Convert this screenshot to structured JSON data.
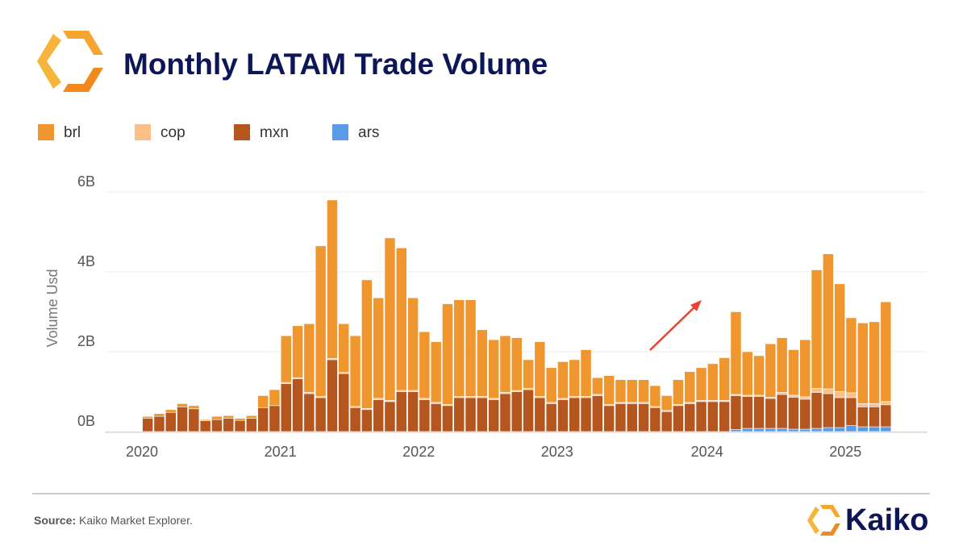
{
  "chart_data": {
    "type": "stacked_bar",
    "title": "Monthly LATAM Trade Volume",
    "y_label": "Volume Usd",
    "categories": [
      "2020",
      null,
      null,
      null,
      null,
      null,
      null,
      null,
      null,
      null,
      null,
      null,
      "2021",
      null,
      null,
      null,
      null,
      null,
      null,
      null,
      null,
      null,
      null,
      null,
      "2022",
      null,
      null,
      null,
      null,
      null,
      null,
      null,
      null,
      null,
      null,
      null,
      "2023",
      null,
      null,
      null,
      null,
      null,
      null,
      null,
      null,
      null,
      null,
      null,
      null,
      "2024",
      null,
      null,
      null,
      null,
      null,
      null,
      null,
      null,
      null,
      null,
      null,
      "2025",
      null,
      null,
      null
    ],
    "series": [
      {
        "name": "ars",
        "color": "#5b9ae8",
        "values": [
          0,
          0,
          0,
          0,
          0,
          0,
          0,
          0,
          0,
          0,
          0,
          0,
          0,
          0,
          0,
          0,
          0,
          0,
          0,
          0,
          0,
          0,
          0,
          0,
          0,
          0,
          0,
          0,
          0,
          0,
          0,
          0,
          0,
          0,
          0,
          0,
          0,
          0,
          0,
          0,
          0,
          0,
          0,
          0,
          0,
          0,
          0,
          0,
          0,
          0,
          0,
          0.05,
          0.08,
          0.08,
          0.08,
          0.08,
          0.06,
          0.06,
          0.08,
          0.1,
          0.1,
          0.15,
          0.12,
          0.12,
          0.12
        ]
      },
      {
        "name": "mxn",
        "color": "#b5561f",
        "values": [
          0.33,
          0.38,
          0.48,
          0.62,
          0.57,
          0.27,
          0.3,
          0.33,
          0.28,
          0.33,
          0.6,
          0.65,
          1.2,
          1.32,
          0.95,
          0.85,
          1.8,
          1.45,
          0.6,
          0.55,
          0.8,
          0.75,
          1.0,
          1.0,
          0.8,
          0.7,
          0.65,
          0.85,
          0.85,
          0.85,
          0.8,
          0.95,
          1.0,
          1.05,
          0.85,
          0.7,
          0.8,
          0.85,
          0.85,
          0.9,
          0.65,
          0.7,
          0.7,
          0.7,
          0.6,
          0.5,
          0.65,
          0.7,
          0.75,
          0.75,
          0.75,
          0.85,
          0.8,
          0.8,
          0.75,
          0.85,
          0.8,
          0.75,
          0.9,
          0.85,
          0.75,
          0.7,
          0.5,
          0.5,
          0.55
        ]
      },
      {
        "name": "cop",
        "color": "#fbc08a",
        "values": [
          0,
          0,
          0,
          0,
          0,
          0,
          0,
          0,
          0,
          0,
          0,
          0,
          0.03,
          0.03,
          0.03,
          0.03,
          0.03,
          0.03,
          0.03,
          0.03,
          0.03,
          0.03,
          0.03,
          0.03,
          0.03,
          0.03,
          0.03,
          0.03,
          0.03,
          0.03,
          0.03,
          0.03,
          0.03,
          0.03,
          0.03,
          0.03,
          0.03,
          0.03,
          0.03,
          0.03,
          0.03,
          0.03,
          0.03,
          0.03,
          0.03,
          0.03,
          0.03,
          0.03,
          0.03,
          0.03,
          0.03,
          0.03,
          0.03,
          0.03,
          0.03,
          0.05,
          0.05,
          0.06,
          0.1,
          0.12,
          0.15,
          0.12,
          0.08,
          0.08,
          0.08
        ]
      },
      {
        "name": "brl",
        "color": "#f0962e",
        "values": [
          0.05,
          0.07,
          0.07,
          0.08,
          0.08,
          0.03,
          0.08,
          0.07,
          0.05,
          0.07,
          0.3,
          0.4,
          1.17,
          1.3,
          1.72,
          3.77,
          3.97,
          1.22,
          1.77,
          3.22,
          2.52,
          4.07,
          3.57,
          2.32,
          1.67,
          1.52,
          2.52,
          2.42,
          2.42,
          1.67,
          1.47,
          1.42,
          1.32,
          0.72,
          1.37,
          0.87,
          0.92,
          0.92,
          1.17,
          0.42,
          0.72,
          0.57,
          0.57,
          0.57,
          0.52,
          0.37,
          0.62,
          0.77,
          0.82,
          0.92,
          1.07,
          2.07,
          1.09,
          0.99,
          1.34,
          1.37,
          1.14,
          1.43,
          2.97,
          3.38,
          2.7,
          1.88,
          2.02,
          2.05,
          2.5
        ]
      }
    ],
    "legend_order": [
      3,
      2,
      1,
      0
    ],
    "ylim": [
      0,
      6
    ],
    "yticks": [
      {
        "value": 0,
        "label": "0B"
      },
      {
        "value": 2,
        "label": "2B"
      },
      {
        "value": 4,
        "label": "4B"
      },
      {
        "value": 6,
        "label": "6B"
      }
    ],
    "grid": true
  },
  "footer": {
    "source_label": "Source:",
    "source_text": "Kaiko Market Explorer.",
    "brand": "Kaiko"
  }
}
